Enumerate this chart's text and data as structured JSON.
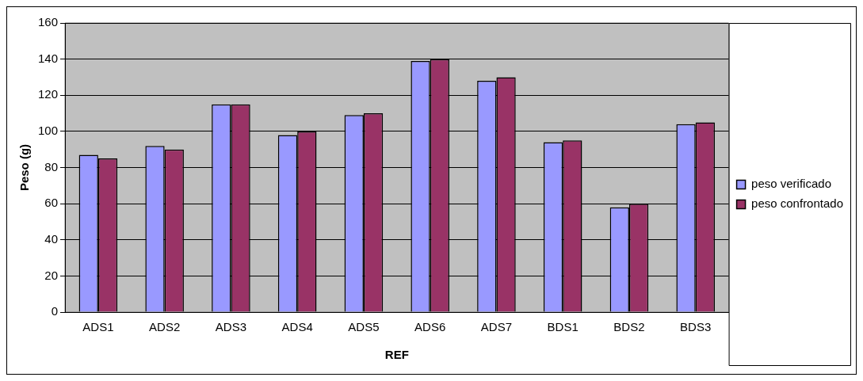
{
  "chart_data": {
    "type": "bar",
    "xlabel": "REF",
    "ylabel": "Peso (g)",
    "categories": [
      "ADS1",
      "ADS2",
      "ADS3",
      "ADS4",
      "ADS5",
      "ADS6",
      "ADS7",
      "BDS1",
      "BDS2",
      "BDS3"
    ],
    "series": [
      {
        "name": "peso verificado",
        "color": "#9999ff",
        "values": [
          87,
          92,
          115,
          98,
          109,
          139,
          128,
          94,
          58,
          104
        ]
      },
      {
        "name": "peso confrontado",
        "color": "#993366",
        "values": [
          85,
          90,
          115,
          100,
          110,
          140,
          130,
          95,
          60,
          105
        ]
      }
    ],
    "ylim": [
      0,
      160
    ],
    "yticks": [
      0,
      20,
      40,
      60,
      80,
      100,
      120,
      140,
      160
    ],
    "grid": "y",
    "legend": "right"
  }
}
